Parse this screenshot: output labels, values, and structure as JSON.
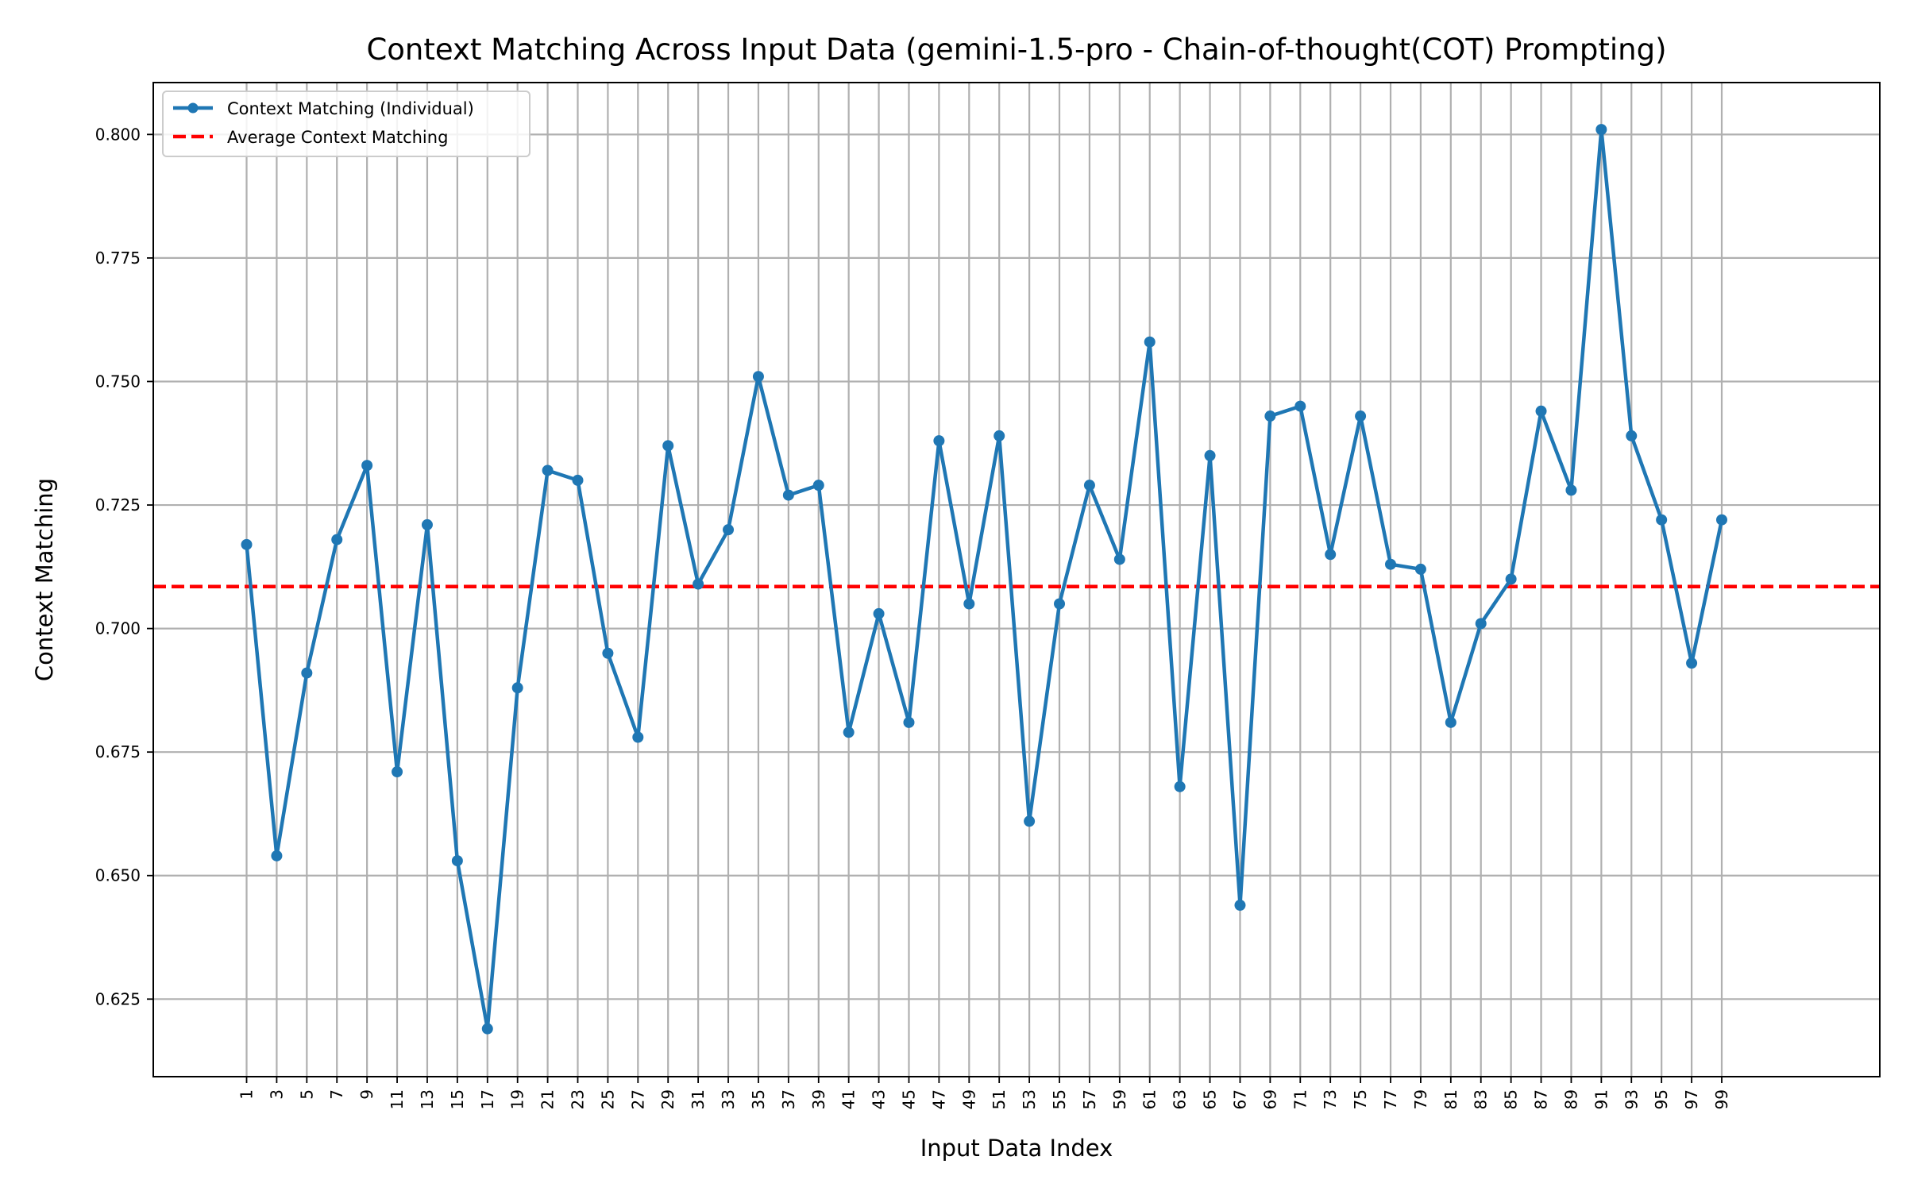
{
  "chart_data": {
    "type": "line",
    "title": "Context Matching Across Input Data (gemini-1.5-pro - Chain-of-thought(COT) Prompting)",
    "xlabel": "Input Data Index",
    "ylabel": "Context Matching",
    "xlim": [
      -5.2,
      109.5
    ],
    "ylim": [
      0.6093,
      0.8105
    ],
    "xticks": [
      1,
      3,
      5,
      7,
      9,
      11,
      13,
      15,
      17,
      19,
      21,
      23,
      25,
      27,
      29,
      31,
      33,
      35,
      37,
      39,
      41,
      43,
      45,
      47,
      49,
      51,
      53,
      55,
      57,
      59,
      61,
      63,
      65,
      67,
      69,
      71,
      73,
      75,
      77,
      79,
      81,
      83,
      85,
      87,
      89,
      91,
      93,
      95,
      97,
      99
    ],
    "yticks": [
      0.625,
      0.65,
      0.675,
      0.7,
      0.725,
      0.75,
      0.775,
      0.8
    ],
    "ytick_labels": [
      "0.625",
      "0.650",
      "0.675",
      "0.700",
      "0.725",
      "0.750",
      "0.775",
      "0.800"
    ],
    "grid": true,
    "legend_position": "upper-left",
    "series": [
      {
        "name": "Context Matching (Individual)",
        "color": "#1f77b4",
        "marker": "circle",
        "x": [
          1,
          3,
          5,
          7,
          9,
          11,
          13,
          15,
          17,
          19,
          21,
          23,
          25,
          27,
          29,
          31,
          33,
          35,
          37,
          39,
          41,
          43,
          45,
          47,
          49,
          51,
          53,
          55,
          57,
          59,
          61,
          63,
          65,
          67,
          69,
          71,
          73,
          75,
          77,
          79,
          81,
          83,
          85,
          87,
          89,
          91,
          93,
          95,
          97,
          99
        ],
        "y": [
          0.717,
          0.654,
          0.691,
          0.718,
          0.733,
          0.671,
          0.721,
          0.653,
          0.619,
          0.688,
          0.732,
          0.73,
          0.695,
          0.678,
          0.737,
          0.709,
          0.72,
          0.751,
          0.727,
          0.729,
          0.679,
          0.703,
          0.681,
          0.738,
          0.705,
          0.739,
          0.661,
          0.705,
          0.729,
          0.714,
          0.758,
          0.668,
          0.735,
          0.644,
          0.743,
          0.745,
          0.715,
          0.743,
          0.713,
          0.712,
          0.681,
          0.701,
          0.71,
          0.744,
          0.728,
          0.801,
          0.739,
          0.722,
          0.693,
          0.722
        ]
      },
      {
        "name": "Average Context Matching",
        "color": "#ff0000",
        "style": "dashed",
        "y_constant": 0.7085
      }
    ]
  }
}
